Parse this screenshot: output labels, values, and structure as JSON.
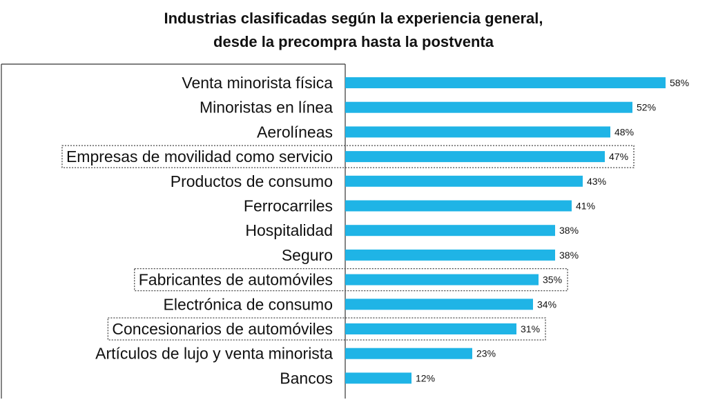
{
  "chart_data": {
    "type": "bar",
    "orientation": "horizontal",
    "title_lines": [
      "Industrias clasificadas según la experiencia general,",
      "desde la precompra hasta la postventa"
    ],
    "categories": [
      "Venta minorista física",
      "Minoristas en línea",
      "Aerolíneas",
      "Empresas de movilidad como servicio",
      "Productos de consumo",
      "Ferrocarriles",
      "Hospitalidad",
      "Seguro",
      "Fabricantes de automóviles",
      "Electrónica de consumo",
      "Concesionarios de automóviles",
      "Artículos de lujo y venta minorista",
      "Bancos"
    ],
    "values": [
      58,
      52,
      48,
      47,
      43,
      41,
      38,
      38,
      35,
      34,
      31,
      23,
      12
    ],
    "value_labels": [
      "58%",
      "52%",
      "48%",
      "47%",
      "43%",
      "41%",
      "38%",
      "38%",
      "35%",
      "34%",
      "31%",
      "23%",
      "12%"
    ],
    "highlighted": [
      "Empresas de movilidad como servicio",
      "Fabricantes de automóviles",
      "Concesionarios de automóviles"
    ],
    "xlim": [
      0,
      58
    ],
    "xlabel": "",
    "ylabel": "",
    "grid": false,
    "legend": "none",
    "bar_color": "#1fb4e6",
    "text_color": "#111111"
  }
}
